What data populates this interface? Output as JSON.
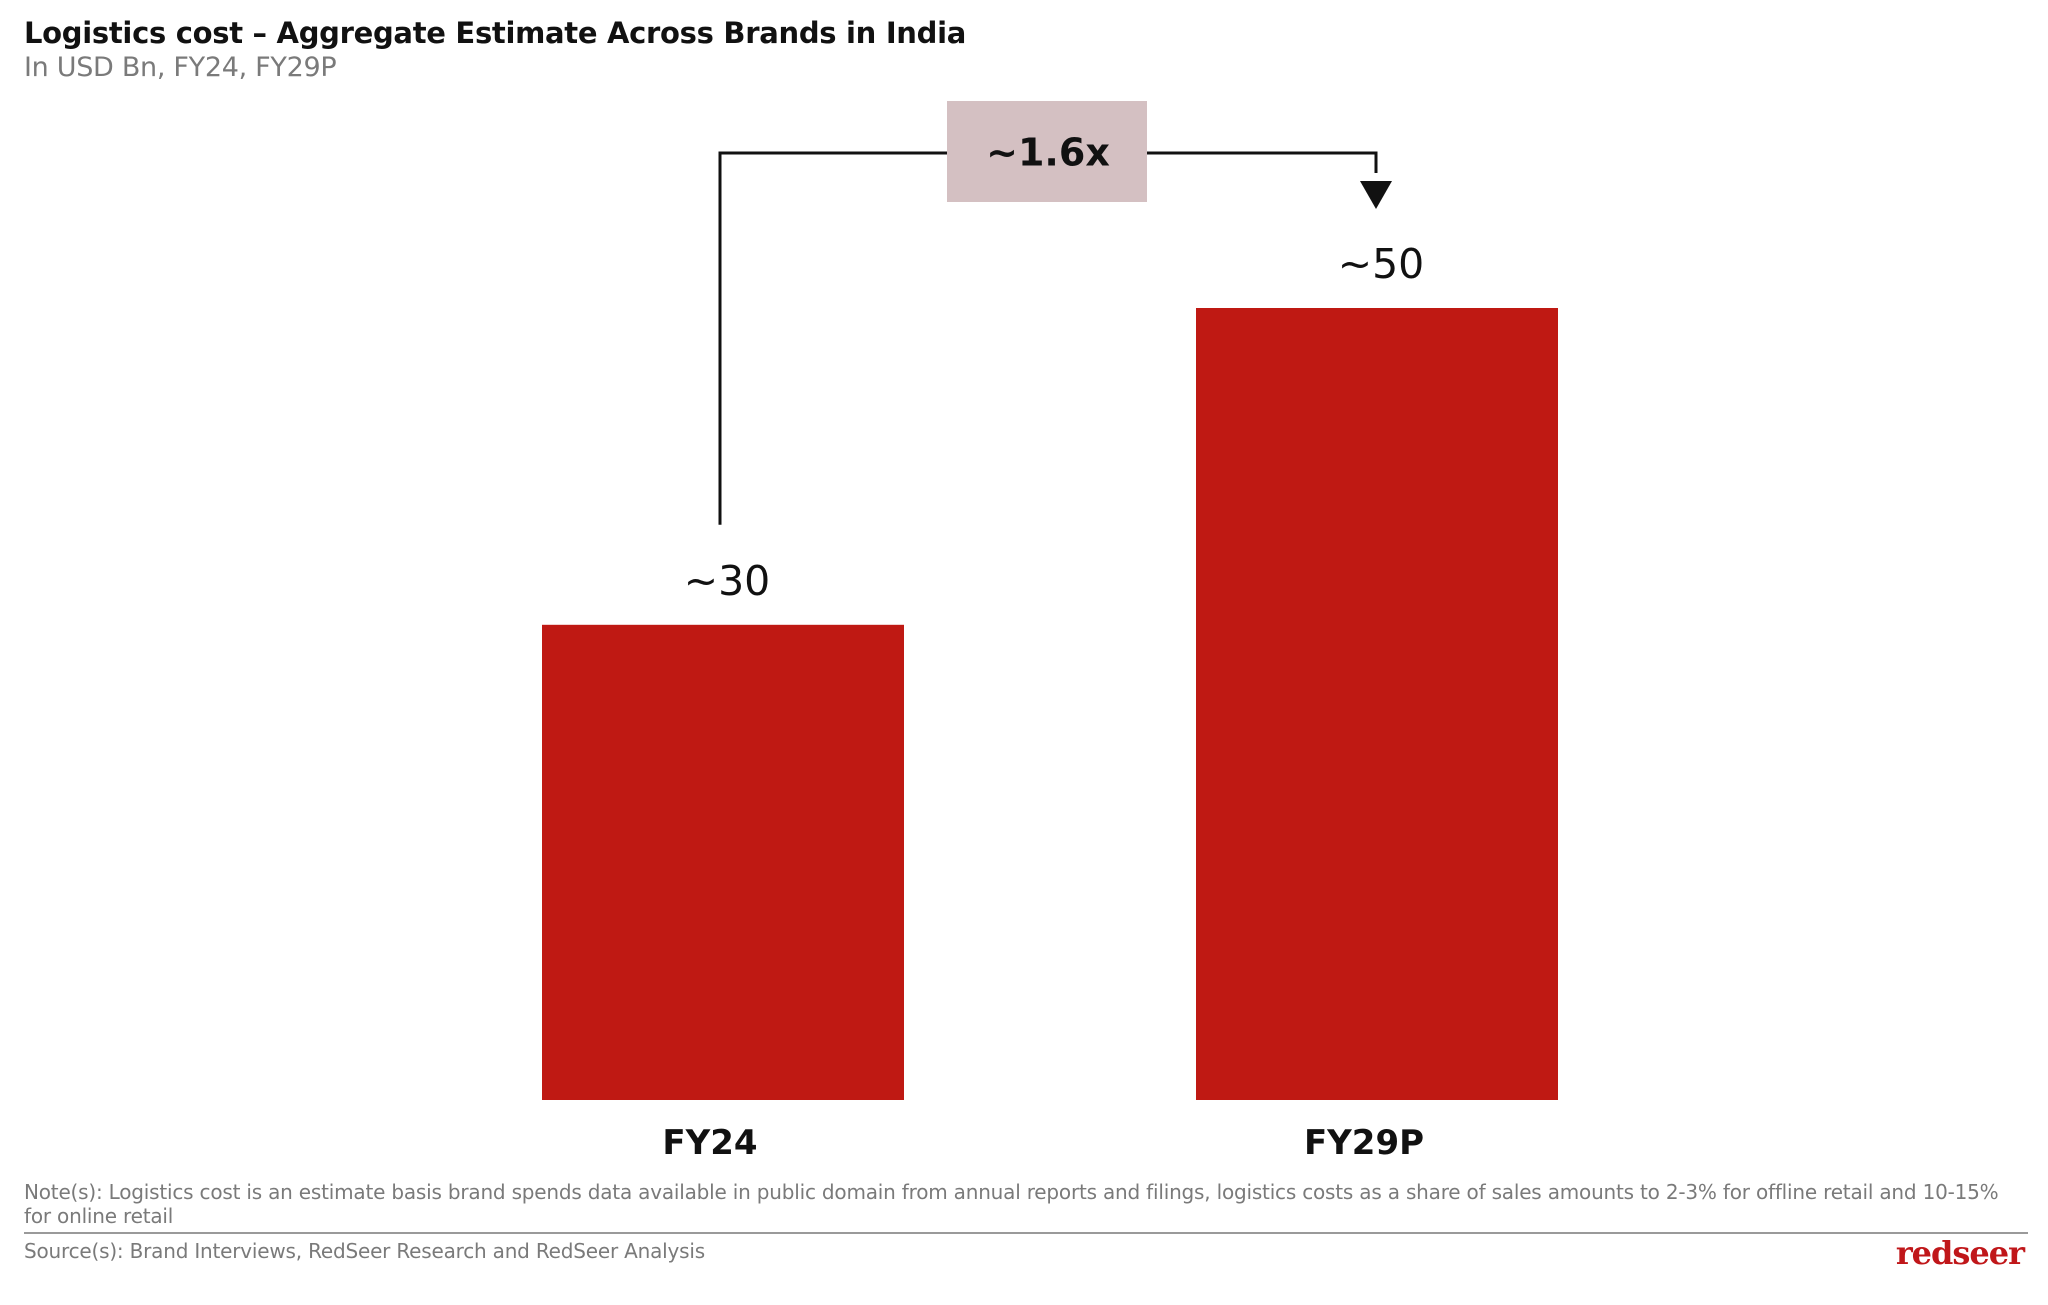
{
  "header": {
    "title": "Logistics cost – Aggregate Estimate Across Brands in India",
    "subtitle": "In USD Bn, FY24, FY29P"
  },
  "chart_data": {
    "type": "bar",
    "categories": [
      "FY24",
      "FY29P"
    ],
    "values": [
      30,
      50
    ],
    "data_labels": [
      "~30",
      "~50"
    ],
    "growth_label": "~1.6x",
    "ylim": [
      0,
      50
    ],
    "grid": false,
    "axes_visible": false,
    "colors": {
      "bar": "#bf1913",
      "growth_box": "#d4c0c2",
      "connector": "#111111"
    }
  },
  "footer": {
    "note": "Note(s): Logistics cost is an estimate basis brand spends data available in public domain from annual reports and filings, logistics costs as a share of sales amounts to 2-3% for offline retail and 10-15% for online retail",
    "source": "Source(s): Brand Interviews, RedSeer Research and RedSeer Analysis",
    "brand": "redseer"
  }
}
